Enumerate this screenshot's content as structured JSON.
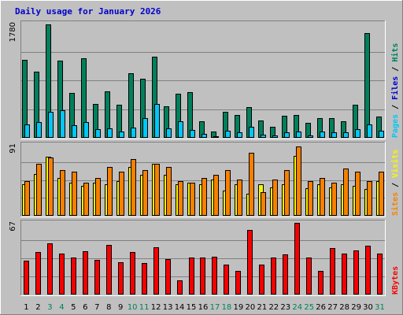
{
  "chart_data": {
    "type": "bar",
    "title": "Daily usage for January 2026",
    "categories": [
      "1",
      "2",
      "3",
      "4",
      "5",
      "6",
      "7",
      "8",
      "9",
      "10",
      "11",
      "12",
      "13",
      "14",
      "15",
      "16",
      "17",
      "18",
      "19",
      "20",
      "21",
      "22",
      "23",
      "24",
      "25",
      "26",
      "27",
      "28",
      "29",
      "30",
      "31"
    ],
    "weekend_days": [
      "3",
      "4",
      "10",
      "11",
      "17",
      "18",
      "24",
      "25",
      "31"
    ],
    "colors": {
      "title": "#0000cc",
      "hits": "#00805c",
      "files": "#0000cc",
      "pages": "#00c8f8",
      "visits": "#f8f800",
      "sites": "#f88000",
      "kbytes": "#f80000",
      "weekday_label": "#000000",
      "weekend_label": "#00805c",
      "plot_bg": "#c0c0c0"
    },
    "panels": [
      {
        "id": "hits",
        "max_label": "1780",
        "axis_label_parts": [
          {
            "text": "Pages",
            "color": "#00c8f8"
          },
          {
            "text": " / ",
            "color": "#000000"
          },
          {
            "text": "Files",
            "color": "#0000cc"
          },
          {
            "text": " / ",
            "color": "#000000"
          },
          {
            "text": "Hits",
            "color": "#00805c"
          }
        ],
        "ylim": [
          0,
          1780
        ],
        "series": [
          {
            "name": "Hits",
            "color": "#00805c",
            "values": [
              1210,
              1020,
              1760,
              1190,
              690,
              1230,
              520,
              720,
              510,
              1000,
              920,
              1250,
              490,
              680,
              710,
              250,
              100,
              400,
              350,
              470,
              270,
              170,
              340,
              350,
              230,
              300,
              310,
              260,
              510,
              1620,
              330
            ]
          },
          {
            "name": "Pages",
            "color": "#00c8f8",
            "values": [
              210,
              240,
              400,
              430,
              200,
              240,
              140,
              150,
              100,
              160,
              300,
              530,
              150,
              250,
              120,
              60,
              30,
              110,
              90,
              170,
              50,
              40,
              80,
              100,
              40,
              100,
              90,
              90,
              140,
              210,
              110
            ]
          }
        ]
      },
      {
        "id": "visits",
        "max_label": "91",
        "axis_label_parts": [
          {
            "text": "Sites",
            "color": "#f88000"
          },
          {
            "text": " / ",
            "color": "#000000"
          },
          {
            "text": "Visits",
            "color": "#f8f800"
          }
        ],
        "ylim": [
          0,
          91
        ],
        "series": [
          {
            "name": "Visits",
            "color": "#f8f800",
            "values": [
              40,
              53,
              75,
              48,
              42,
              38,
              42,
              40,
              44,
              62,
              52,
              66,
              52,
              40,
              42,
              40,
              46,
              32,
              40,
              28,
              40,
              36,
              40,
              76,
              35,
              40,
              36,
              40,
              38,
              34,
              44
            ]
          },
          {
            "name": "Sites",
            "color": "#f88000",
            "values": [
              44,
              66,
              74,
              58,
              56,
              42,
              48,
              62,
              56,
              72,
              58,
              66,
              62,
              44,
              42,
              48,
              52,
              58,
              46,
              80,
              30,
              46,
              58,
              88,
              44,
              48,
              42,
              60,
              56,
              44,
              56
            ]
          }
        ]
      },
      {
        "id": "kbytes",
        "max_label": "67",
        "axis_label_parts": [
          {
            "text": "KBytes",
            "color": "#f80000"
          }
        ],
        "ylim": [
          0,
          67
        ],
        "series": [
          {
            "name": "KBytes",
            "color": "#f80000",
            "values": [
              31,
              39,
              47,
              38,
              34,
              40,
              32,
              46,
              30,
              39,
              29,
              44,
              33,
              13,
              34,
              34,
              35,
              28,
              22,
              60,
              28,
              34,
              37,
              66,
              34,
              22,
              43,
              38,
              41,
              45,
              38
            ]
          }
        ]
      }
    ]
  }
}
